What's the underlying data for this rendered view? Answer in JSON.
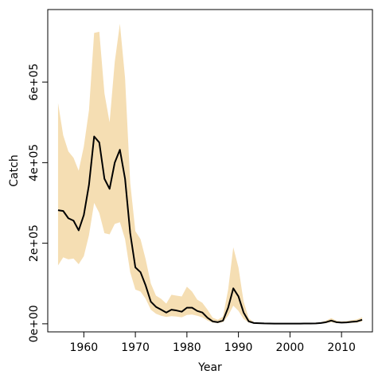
{
  "chart_data": {
    "type": "line",
    "xlabel": "Year",
    "ylabel": "Catch",
    "xlim": [
      1953,
      2016
    ],
    "ylim": [
      -20000,
      780000
    ],
    "x_ticks": [
      1960,
      1970,
      1980,
      1990,
      2000,
      2010
    ],
    "x_tick_labels": [
      "1960",
      "1970",
      "1980",
      "1990",
      "2000",
      "2010"
    ],
    "y_ticks": [
      0,
      200000,
      400000,
      600000
    ],
    "y_tick_labels": [
      "0e+00",
      "2e+05",
      "4e+05",
      "6e+05"
    ],
    "colors": {
      "band": "#F5DEB3",
      "line": "#000000"
    },
    "band_name": "",
    "line_name": "",
    "x": [
      1955,
      1956,
      1957,
      1958,
      1959,
      1960,
      1961,
      1962,
      1963,
      1964,
      1965,
      1966,
      1967,
      1968,
      1969,
      1970,
      1971,
      1972,
      1973,
      1974,
      1975,
      1976,
      1977,
      1978,
      1979,
      1980,
      1981,
      1982,
      1983,
      1984,
      1985,
      1986,
      1987,
      1988,
      1989,
      1990,
      1991,
      1992,
      1993,
      1994,
      1995,
      1996,
      1997,
      1998,
      1999,
      2000,
      2001,
      2002,
      2003,
      2004,
      2005,
      2006,
      2007,
      2008,
      2009,
      2010,
      2011,
      2012,
      2013,
      2014
    ],
    "y": [
      282000,
      280000,
      262000,
      256000,
      232000,
      270000,
      345000,
      465000,
      450000,
      360000,
      335000,
      400000,
      432000,
      360000,
      225000,
      140000,
      128000,
      95000,
      55000,
      42000,
      35000,
      28000,
      35000,
      33000,
      30000,
      40000,
      40000,
      32000,
      28000,
      15000,
      6000,
      4000,
      8000,
      40000,
      88000,
      68000,
      28000,
      6000,
      2000,
      1500,
      1000,
      800,
      600,
      600,
      500,
      500,
      500,
      600,
      700,
      800,
      1000,
      2000,
      4000,
      8000,
      4000,
      3000,
      3500,
      5000,
      6000,
      10000
    ],
    "lower": [
      145000,
      165000,
      160000,
      162000,
      148000,
      168000,
      220000,
      300000,
      275000,
      225000,
      222000,
      248000,
      252000,
      210000,
      128000,
      85000,
      80000,
      62000,
      35000,
      25000,
      20000,
      17000,
      19000,
      18000,
      16000,
      22000,
      23000,
      20000,
      16000,
      8000,
      3000,
      2000,
      4000,
      20000,
      45000,
      32000,
      12000,
      3000,
      1000,
      700,
      500,
      400,
      300,
      300,
      250,
      250,
      250,
      300,
      350,
      400,
      500,
      1000,
      2000,
      4000,
      2000,
      1500,
      1800,
      2500,
      3000,
      6000
    ],
    "upper": [
      548000,
      468000,
      428000,
      412000,
      380000,
      440000,
      530000,
      722000,
      725000,
      572000,
      500000,
      650000,
      745000,
      610000,
      350000,
      230000,
      210000,
      160000,
      100000,
      70000,
      62000,
      50000,
      72000,
      70000,
      68000,
      92000,
      80000,
      60000,
      52000,
      35000,
      15000,
      10000,
      18000,
      85000,
      190000,
      140000,
      55000,
      14000,
      4000,
      3000,
      2500,
      2000,
      1500,
      1500,
      1200,
      1200,
      1200,
      1500,
      1800,
      2000,
      2500,
      4000,
      8000,
      14000,
      8000,
      6000,
      7000,
      9000,
      11000,
      16000
    ]
  }
}
